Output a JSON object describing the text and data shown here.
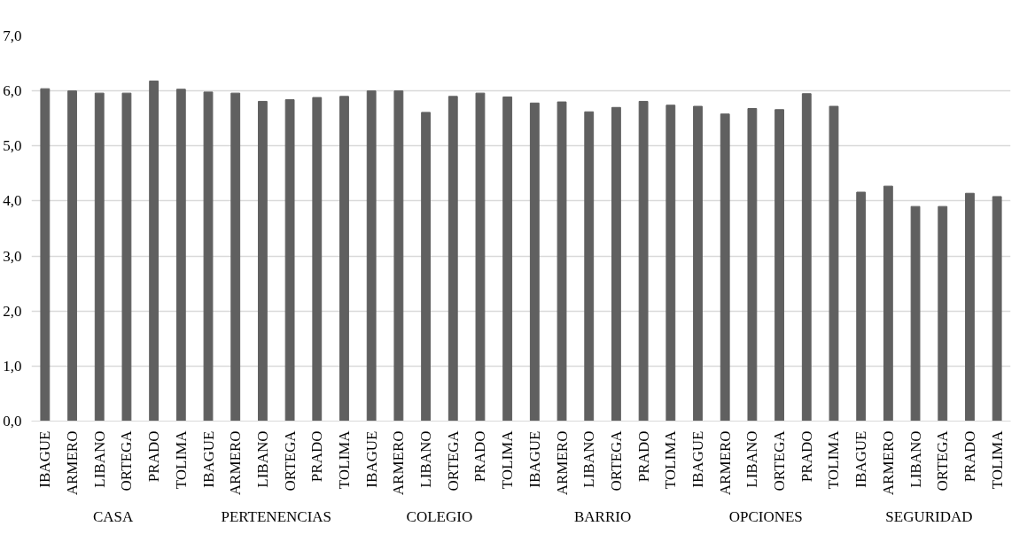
{
  "chart_data": {
    "type": "bar",
    "categories": [
      "IBAGUE",
      "ARMERO",
      "LIBANO",
      "ORTEGA",
      "PRADO",
      "TOLIMA",
      "IBAGUE",
      "ARMERO",
      "LIBANO",
      "ORTEGA",
      "PRADO",
      "TOLIMA",
      "IBAGUE",
      "ARMERO",
      "LIBANO",
      "ORTEGA",
      "PRADO",
      "TOLIMA",
      "IBAGUE",
      "ARMERO",
      "LIBANO",
      "ORTEGA",
      "PRADO",
      "TOLIMA",
      "IBAGUE",
      "ARMERO",
      "LIBANO",
      "ORTEGA",
      "PRADO",
      "TOLIMA",
      "IBAGUE",
      "ARMERO",
      "LIBANO",
      "ORTEGA",
      "PRADO",
      "TOLIMA"
    ],
    "values": [
      6.04,
      6.0,
      5.96,
      5.96,
      6.18,
      6.03,
      5.98,
      5.96,
      5.81,
      5.84,
      5.88,
      5.9,
      6.0,
      6.0,
      5.61,
      5.9,
      5.96,
      5.89,
      5.78,
      5.8,
      5.62,
      5.7,
      5.81,
      5.74,
      5.72,
      5.58,
      5.68,
      5.66,
      5.95,
      5.72,
      4.16,
      4.27,
      3.9,
      3.9,
      4.14,
      4.08
    ],
    "color": "#606060",
    "annotations": [
      "CASA",
      "PERTENENCIAS",
      "COLEGIO",
      "BARRIO",
      "OPCIONES",
      "SEGURIDAD"
    ],
    "ylim": [
      0,
      7
    ],
    "yticks": [
      {
        "value": 0,
        "label": "0,0"
      },
      {
        "value": 1,
        "label": "1,0"
      },
      {
        "value": 2,
        "label": "2,0"
      },
      {
        "value": 3,
        "label": "3,0"
      },
      {
        "value": 4,
        "label": "4,0"
      },
      {
        "value": 5,
        "label": "5,0"
      },
      {
        "value": 6,
        "label": "6,0"
      },
      {
        "value": 7,
        "label": "7,0"
      }
    ],
    "grid": "y"
  }
}
